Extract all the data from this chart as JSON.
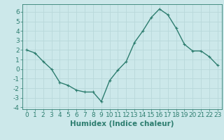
{
  "x": [
    0,
    1,
    2,
    3,
    4,
    5,
    6,
    7,
    8,
    9,
    10,
    11,
    12,
    13,
    14,
    15,
    16,
    17,
    18,
    19,
    20,
    21,
    22,
    23
  ],
  "y": [
    2.0,
    1.7,
    0.8,
    0.0,
    -1.4,
    -1.7,
    -2.2,
    -2.4,
    -2.4,
    -3.4,
    -1.2,
    -0.1,
    0.8,
    2.8,
    4.0,
    5.4,
    6.3,
    5.7,
    4.3,
    2.6,
    1.9,
    1.9,
    1.3,
    0.4
  ],
  "line_color": "#2d7d6f",
  "marker": "+",
  "bg_color": "#cce8ea",
  "grid_color": "#b8d8da",
  "xlabel": "Humidex (Indice chaleur)",
  "xlim": [
    -0.5,
    23.5
  ],
  "ylim": [
    -4.2,
    6.8
  ],
  "yticks": [
    -4,
    -3,
    -2,
    -1,
    0,
    1,
    2,
    3,
    4,
    5,
    6
  ],
  "xticks": [
    0,
    1,
    2,
    3,
    4,
    5,
    6,
    7,
    8,
    9,
    10,
    11,
    12,
    13,
    14,
    15,
    16,
    17,
    18,
    19,
    20,
    21,
    22,
    23
  ],
  "tick_label_fontsize": 6.5,
  "xlabel_fontsize": 7.5,
  "line_width": 1.0,
  "marker_size": 3.5
}
